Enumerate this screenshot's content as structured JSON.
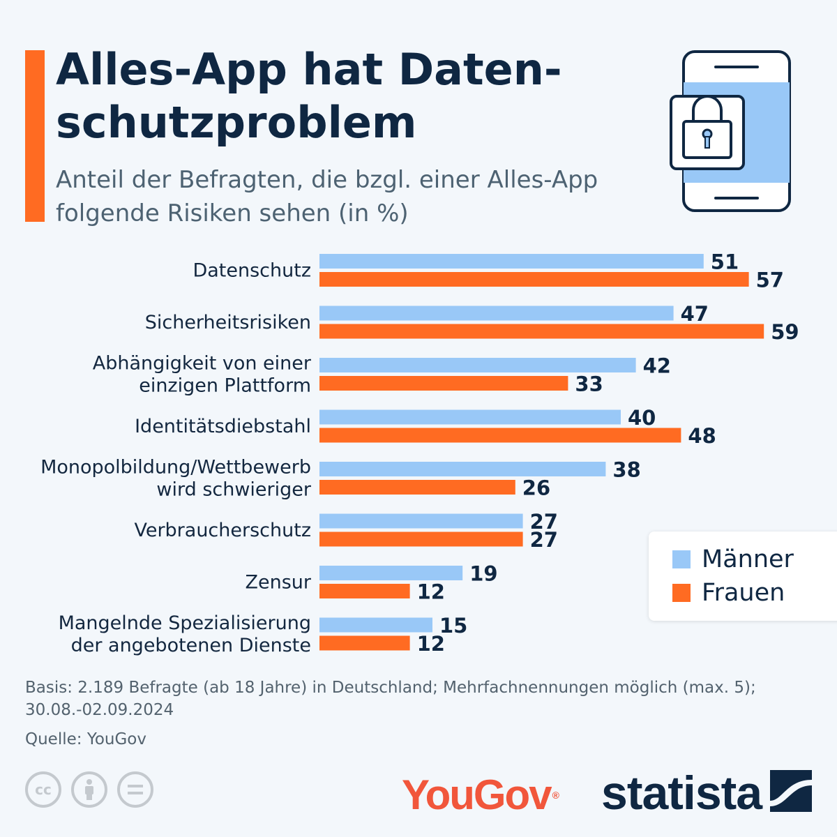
{
  "header": {
    "title": "Alles-App hat Daten-\nschutzproblem",
    "subtitle": "Anteil der Befragten, die bzgl. einer Alles-App\nfolgende Risiken sehen (in %)"
  },
  "colors": {
    "accent": "#ff6b22",
    "maenner": "#99c8f7",
    "frauen": "#ff6b22",
    "text": "#0f2742"
  },
  "chart_data": {
    "type": "bar",
    "orientation": "horizontal",
    "categories": [
      [
        "Datenschutz"
      ],
      [
        "Sicherheitsrisiken"
      ],
      [
        "Abhängigkeit von einer",
        "einzigen Plattform"
      ],
      [
        "Identitätsdiebstahl"
      ],
      [
        "Monopolbildung/Wettbewerb",
        "wird schwieriger"
      ],
      [
        "Verbraucherschutz"
      ],
      [
        "Zensur"
      ],
      [
        "Mangelnde Spezialisierung",
        "der angebotenen Dienste"
      ]
    ],
    "series": [
      {
        "name": "Männer",
        "color": "#99c8f7",
        "values": [
          51,
          47,
          42,
          40,
          38,
          27,
          19,
          15
        ]
      },
      {
        "name": "Frauen",
        "color": "#ff6b22",
        "values": [
          57,
          59,
          33,
          48,
          26,
          27,
          12,
          12
        ]
      }
    ],
    "xlim": [
      0,
      70
    ],
    "grid": false,
    "legend_position": "right"
  },
  "legend": {
    "items": [
      "Männer",
      "Frauen"
    ]
  },
  "footer": {
    "basis_line1": "Basis: 2.189 Befragte (ab 18 Jahre) in Deutschland; Mehrfachnennungen möglich (max. 5);",
    "basis_line2": "30.08.-02.09.2024",
    "source": "Quelle: YouGov",
    "license_icons": [
      "cc-icon",
      "by-icon",
      "nd-icon"
    ],
    "yougov_logo": "YouGov",
    "statista_logo": "statista"
  }
}
